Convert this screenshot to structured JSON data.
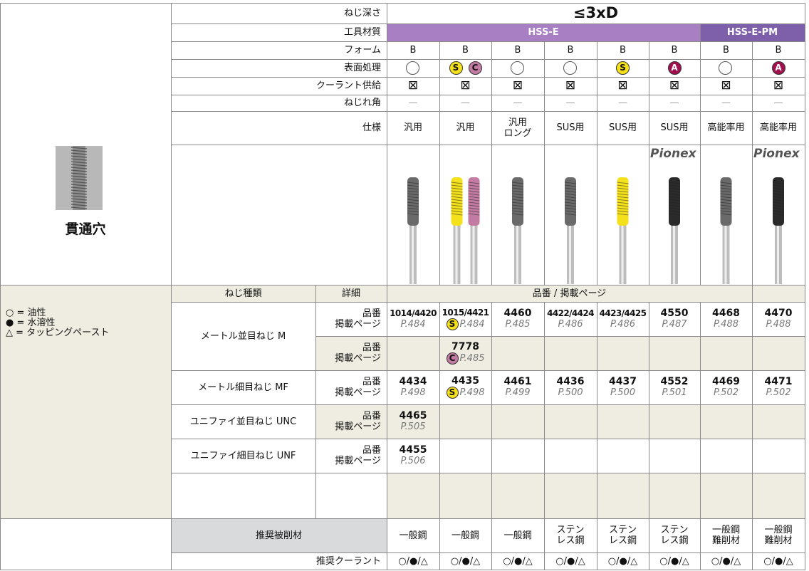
{
  "left": {
    "hole_label": "貫通穴",
    "legend": [
      "○ = 油性",
      "● = 水溶性",
      "△ = タッピングペースト"
    ]
  },
  "spec": {
    "labels": [
      "ねじ深さ",
      "工具材質",
      "フォーム",
      "表面処理",
      "クーラント供給",
      "ねじれ角",
      "仕様"
    ],
    "thread_depth": "≤3xD",
    "tool_material": [
      {
        "name": "HSS-E",
        "columns": 6,
        "color": "#a87fc3"
      },
      {
        "name": "HSS-E-PM",
        "columns": 2,
        "color": "#7e60aa"
      }
    ],
    "form": [
      "B",
      "B",
      "B",
      "B",
      "B",
      "B",
      "B",
      "B"
    ],
    "surface": [
      [],
      [
        "S",
        "C"
      ],
      [],
      [],
      [
        "S"
      ],
      [
        "A"
      ],
      [],
      [
        "A"
      ]
    ],
    "badge_colors": {
      "S": "#f4e11c",
      "C": "#c27ba3",
      "A": "#a3104f"
    },
    "coolant_supply": [
      "⊠",
      "⊠",
      "⊠",
      "⊠",
      "⊠",
      "⊠",
      "⊠",
      "⊠"
    ],
    "helix": [
      "—",
      "—",
      "—",
      "—",
      "—",
      "—",
      "—",
      "—"
    ],
    "spec": [
      [
        "汎用"
      ],
      [
        "汎用"
      ],
      [
        "汎用",
        "ロング"
      ],
      [
        "SUS用"
      ],
      [
        "SUS用"
      ],
      [
        "SUS用"
      ],
      [
        "高能率用"
      ],
      [
        "高能率用"
      ]
    ],
    "brand": [
      null,
      null,
      null,
      null,
      null,
      "Pionex",
      null,
      "Pionex"
    ]
  },
  "table": {
    "headers": [
      "ねじ種類",
      "詳細",
      "品番 / 掲載ページ"
    ],
    "groups": [
      {
        "type": "メートル並目ねじ M",
        "rows": [
          {
            "detail": [
              "品番",
              "掲載ページ"
            ],
            "cells": [
              {
                "no": "1014/4420",
                "page": "P.484"
              },
              {
                "no": "1015/4421",
                "badge": "S",
                "page": "P.484"
              },
              {
                "no": "4460",
                "page": "P.485"
              },
              {
                "no": "4422/4424",
                "page": "P.486"
              },
              {
                "no": "4423/4425",
                "page": "P.486"
              },
              {
                "no": "4550",
                "page": "P.487"
              },
              {
                "no": "4468",
                "page": "P.488"
              },
              {
                "no": "4470",
                "page": "P.488"
              }
            ]
          },
          {
            "detail": [
              "品番",
              "掲載ページ"
            ],
            "cells": [
              null,
              {
                "no": "7778",
                "badge": "C",
                "page": "P.485"
              },
              null,
              null,
              null,
              null,
              null,
              null
            ]
          }
        ]
      },
      {
        "type": "メートル細目ねじ MF",
        "rows": [
          {
            "detail": [
              "品番",
              "掲載ページ"
            ],
            "cells": [
              {
                "no": "4434",
                "page": "P.498"
              },
              {
                "no": "4435",
                "badge": "S",
                "page": "P.498"
              },
              {
                "no": "4461",
                "page": "P.499"
              },
              {
                "no": "4436",
                "page": "P.500"
              },
              {
                "no": "4437",
                "page": "P.500"
              },
              {
                "no": "4552",
                "page": "P.501"
              },
              {
                "no": "4469",
                "page": "P.502"
              },
              {
                "no": "4471",
                "page": "P.502"
              }
            ]
          }
        ]
      },
      {
        "type": "ユニファイ並目ねじ UNC",
        "rows": [
          {
            "detail": [
              "品番",
              "掲載ページ"
            ],
            "cells": [
              {
                "no": "4465",
                "page": "P.505"
              },
              null,
              null,
              null,
              null,
              null,
              null,
              null
            ]
          }
        ]
      },
      {
        "type": "ユニファイ細目ねじ UNF",
        "rows": [
          {
            "detail": [
              "品番",
              "掲載ページ"
            ],
            "cells": [
              {
                "no": "4455",
                "page": "P.506"
              },
              null,
              null,
              null,
              null,
              null,
              null,
              null
            ]
          }
        ]
      }
    ],
    "material_label": "推奨被削材",
    "materials": [
      [
        "一般鋼"
      ],
      [
        "一般鋼"
      ],
      [
        "一般鋼"
      ],
      [
        "ステン",
        "レス鋼"
      ],
      [
        "ステン",
        "レス鋼"
      ],
      [
        "ステン",
        "レス鋼"
      ],
      [
        "一般鋼",
        "難削材"
      ],
      [
        "一般鋼",
        "難削材"
      ]
    ],
    "coolant_label": "推奨クーラント",
    "coolants": [
      "○/●/△",
      "○/●/△",
      "○/●/△",
      "○/●/△",
      "○/●/△",
      "○/●/△",
      "○/●/△",
      "○/●/△"
    ]
  }
}
